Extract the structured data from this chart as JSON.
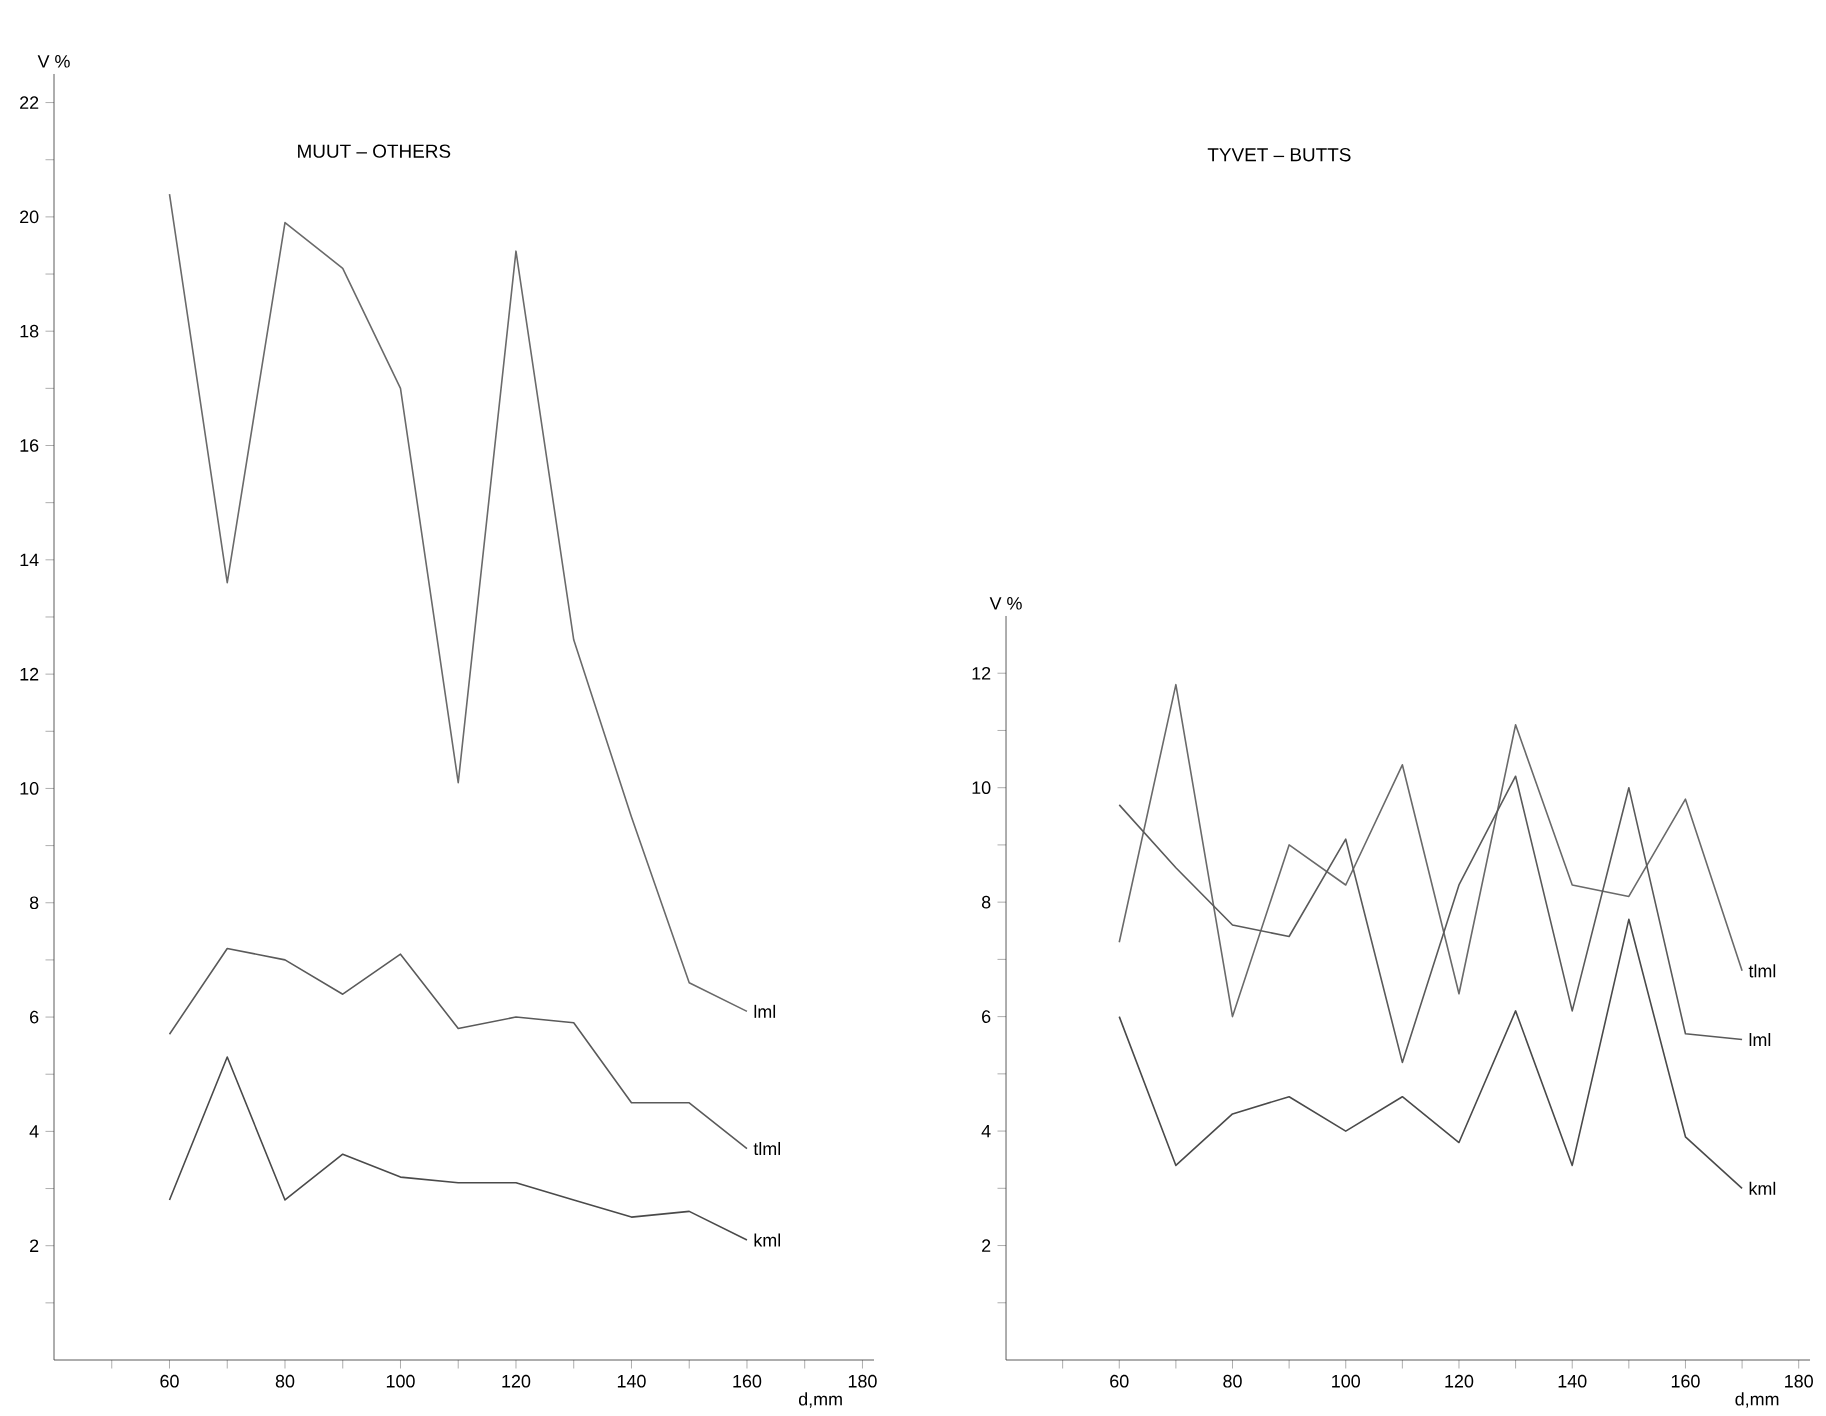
{
  "chart_data": [
    {
      "type": "line",
      "title": "MUUT – OTHERS",
      "xlabel": "d,mm",
      "ylabel": "V %",
      "x": [
        60,
        70,
        80,
        90,
        100,
        110,
        120,
        130,
        140,
        150,
        160
      ],
      "xlim": [
        40,
        182
      ],
      "ylim": [
        0,
        22.5
      ],
      "xticks": [
        {
          "value": 50,
          "label": null
        },
        60,
        {
          "value": 70,
          "label": null
        },
        80,
        {
          "value": 90,
          "label": null
        },
        100,
        {
          "value": 110,
          "label": null
        },
        120,
        {
          "value": 130,
          "label": null
        },
        140,
        {
          "value": 150,
          "label": null
        },
        160,
        {
          "value": 170,
          "label": null
        },
        180
      ],
      "yticks": [
        {
          "value": 1,
          "label": null
        },
        2,
        {
          "value": 3,
          "label": null
        },
        4,
        {
          "value": 5,
          "label": null
        },
        6,
        {
          "value": 7,
          "label": null
        },
        8,
        {
          "value": 9,
          "label": null
        },
        10,
        {
          "value": 11,
          "label": null
        },
        12,
        {
          "value": 13,
          "label": null
        },
        14,
        {
          "value": 15,
          "label": null
        },
        16,
        {
          "value": 17,
          "label": null
        },
        18,
        {
          "value": 19,
          "label": null
        },
        20,
        {
          "value": 21,
          "label": null
        },
        22
      ],
      "series": [
        {
          "name": "lml",
          "color": "#6a6a6a",
          "values": [
            20.4,
            13.6,
            19.9,
            19.1,
            17.0,
            10.1,
            19.4,
            12.6,
            9.5,
            6.6,
            6.1
          ]
        },
        {
          "name": "tlml",
          "color": "#5a5a5a",
          "values": [
            5.7,
            7.2,
            7.0,
            6.4,
            7.1,
            5.8,
            6.0,
            5.9,
            4.5,
            4.5,
            3.7
          ]
        },
        {
          "name": "kml",
          "color": "#4a4a4a",
          "values": [
            2.8,
            5.3,
            2.8,
            3.6,
            3.2,
            3.1,
            3.1,
            2.8,
            2.5,
            2.6,
            2.1
          ]
        }
      ]
    },
    {
      "type": "line",
      "title": "TYVET – BUTTS",
      "xlabel": "d,mm",
      "ylabel": "V %",
      "x": [
        60,
        70,
        80,
        90,
        100,
        110,
        120,
        130,
        140,
        150,
        160,
        170
      ],
      "xlim": [
        40,
        182
      ],
      "ylim": [
        0,
        13
      ],
      "xticks": [
        {
          "value": 50,
          "label": null
        },
        60,
        {
          "value": 70,
          "label": null
        },
        80,
        {
          "value": 90,
          "label": null
        },
        100,
        {
          "value": 110,
          "label": null
        },
        120,
        {
          "value": 130,
          "label": null
        },
        140,
        {
          "value": 150,
          "label": null
        },
        160,
        {
          "value": 170,
          "label": null
        },
        180
      ],
      "yticks": [
        {
          "value": 1,
          "label": null
        },
        2,
        {
          "value": 3,
          "label": null
        },
        4,
        {
          "value": 5,
          "label": null
        },
        6,
        {
          "value": 7,
          "label": null
        },
        8,
        {
          "value": 9,
          "label": null
        },
        10,
        {
          "value": 11,
          "label": null
        },
        12
      ],
      "series": [
        {
          "name": "tlml",
          "color": "#6a6a6a",
          "values": [
            7.3,
            11.8,
            6.0,
            9.0,
            8.3,
            10.4,
            6.4,
            11.1,
            8.3,
            8.1,
            9.8,
            6.8
          ]
        },
        {
          "name": "lml",
          "color": "#5a5a5a",
          "values": [
            9.7,
            8.6,
            7.6,
            7.4,
            9.1,
            5.2,
            8.3,
            10.2,
            6.1,
            10.0,
            5.7,
            5.6
          ]
        },
        {
          "name": "kml",
          "color": "#4a4a4a",
          "values": [
            6.0,
            3.4,
            4.3,
            4.6,
            4.0,
            4.6,
            3.8,
            6.1,
            3.4,
            7.7,
            3.9,
            3.0
          ]
        }
      ]
    }
  ]
}
